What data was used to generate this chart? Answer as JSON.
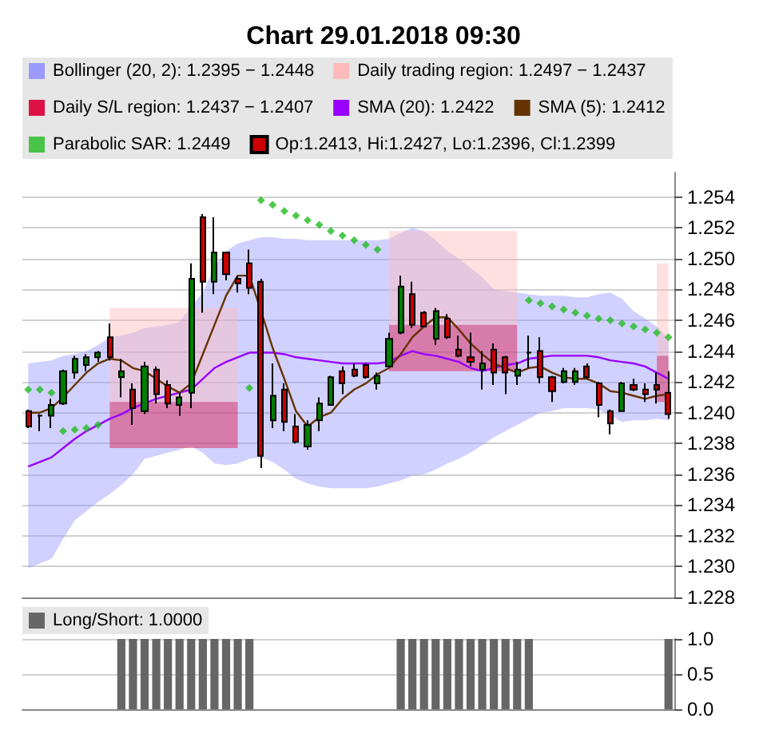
{
  "chart_data": [
    {
      "type": "candlestick",
      "title": "Chart 29.01.2018 09:30",
      "legend": "top left",
      "grid": "y",
      "tick_labels": "y",
      "ylim": [
        1.228,
        1.2556
      ],
      "yticks": [
        1.228,
        {
          "value": 1.23,
          "label": "1.230"
        },
        1.232,
        1.234,
        1.236,
        1.238,
        {
          "value": 1.24,
          "label": "1.240"
        },
        1.242,
        1.244,
        1.246,
        1.248,
        {
          "value": 1.25,
          "label": "1.250"
        },
        1.252,
        1.254
      ],
      "categories": [
        null,
        null,
        null,
        null,
        null,
        null,
        null,
        null,
        null,
        null,
        null,
        null,
        null,
        null,
        null,
        null,
        null,
        null,
        null,
        null,
        null,
        null,
        null,
        null,
        null,
        null,
        null,
        null,
        null,
        null,
        null,
        null,
        null,
        null,
        null,
        null,
        null,
        null,
        null,
        null,
        null,
        null,
        null,
        null,
        null,
        null,
        null,
        null,
        null,
        null,
        null,
        null,
        null,
        null,
        null,
        null
      ],
      "series": [
        {
          "name": "Bollinger (20, 2): 1.2395 − 1.2448",
          "type": "line",
          "color": "#9999ff",
          "values": [
            null,
            null,
            null,
            null,
            null,
            null,
            null,
            null,
            null,
            null,
            null,
            null,
            null,
            null,
            null,
            null,
            null,
            null,
            null,
            null,
            null,
            null,
            null,
            null,
            null,
            null,
            null,
            null,
            null,
            null,
            null,
            null,
            null,
            null,
            null,
            null,
            null,
            null,
            null,
            null,
            null,
            null,
            null,
            null,
            null,
            null,
            null,
            null,
            null,
            null,
            null,
            null,
            null,
            null,
            null,
            null
          ],
          "upper": [
            1.2432,
            1.2433,
            1.2434,
            1.2437,
            1.2438,
            1.244,
            1.2444,
            1.2449,
            1.245,
            1.2452,
            1.2455,
            1.2456,
            1.2457,
            1.2459,
            1.2469,
            1.2478,
            1.2495,
            1.2505,
            1.251,
            1.2512,
            1.2514,
            1.2514,
            1.2513,
            1.2513,
            1.2512,
            1.2512,
            1.2512,
            1.2512,
            1.2512,
            1.2512,
            1.2512,
            1.2513,
            1.2517,
            1.252,
            1.2518,
            1.2512,
            1.2505,
            1.25,
            1.2494,
            1.2488,
            1.248,
            1.2479,
            1.2478,
            1.2477,
            1.2476,
            1.2476,
            1.2476,
            1.2475,
            1.2475,
            1.2477,
            1.2478,
            1.2474,
            1.2466,
            1.2461,
            1.2456,
            1.2448
          ],
          "lower": [
            1.2299,
            1.2302,
            1.2305,
            1.2318,
            1.233,
            1.2336,
            1.2342,
            1.2347,
            1.2353,
            1.236,
            1.237,
            1.2372,
            1.2374,
            1.2376,
            1.2378,
            1.2374,
            1.2367,
            1.2366,
            1.2367,
            1.237,
            1.2371,
            1.2368,
            1.2363,
            1.2357,
            1.2354,
            1.2352,
            1.2351,
            1.2351,
            1.2351,
            1.2351,
            1.2352,
            1.2354,
            1.2356,
            1.2359,
            1.236,
            1.2363,
            1.2367,
            1.237,
            1.2374,
            1.2379,
            1.2384,
            1.2388,
            1.2392,
            1.2396,
            1.24,
            1.2401,
            1.2403,
            1.2403,
            1.2403,
            1.2402,
            1.2398,
            1.2394,
            1.2395,
            1.2395,
            1.2396,
            1.2395
          ]
        },
        {
          "name": "Daily trading region: 1.2497 − 1.2437",
          "type": "line",
          "color": "#ffbbbb",
          "values": [
            null,
            null,
            null,
            null,
            null,
            null,
            null,
            null,
            null,
            null,
            null,
            null,
            null,
            null,
            null,
            null,
            null,
            null,
            null,
            null,
            null,
            null,
            null,
            null,
            null,
            null,
            null,
            null,
            null,
            null,
            null,
            null,
            null,
            null,
            null,
            null,
            null,
            null,
            null,
            null,
            null,
            null,
            null,
            null,
            null,
            null,
            null,
            null,
            null,
            null,
            null,
            null,
            null,
            null,
            null,
            null
          ],
          "upper": [
            null,
            null,
            null,
            null,
            null,
            null,
            null,
            1.2468,
            1.2468,
            1.2468,
            1.2468,
            1.2468,
            1.2468,
            1.2468,
            1.2468,
            1.2468,
            1.2468,
            1.2468,
            1.2468,
            null,
            null,
            null,
            null,
            null,
            null,
            null,
            null,
            null,
            null,
            null,
            null,
            1.2518,
            1.2518,
            1.2518,
            1.2518,
            1.2518,
            1.2518,
            1.2518,
            1.2518,
            1.2518,
            1.2518,
            1.2518,
            1.2518,
            null,
            null,
            null,
            null,
            null,
            null,
            null,
            null,
            null,
            null,
            null,
            1.2497,
            1.2497
          ],
          "lower": [
            null,
            null,
            null,
            null,
            null,
            null,
            null,
            1.2407,
            1.2407,
            1.2407,
            1.2407,
            1.2407,
            1.2407,
            1.2407,
            1.2407,
            1.2407,
            1.2407,
            1.2407,
            1.2407,
            null,
            null,
            null,
            null,
            null,
            null,
            null,
            null,
            null,
            null,
            null,
            null,
            1.2457,
            1.2457,
            1.2457,
            1.2457,
            1.2457,
            1.2457,
            1.2457,
            1.2457,
            1.2457,
            1.2457,
            1.2457,
            1.2457,
            null,
            null,
            null,
            null,
            null,
            null,
            null,
            null,
            null,
            null,
            null,
            1.2437,
            1.2437
          ]
        },
        {
          "name": "Daily S/L region: 1.2437 − 1.2407",
          "type": "line",
          "color": "#dd1144",
          "values": [
            null,
            null,
            null,
            null,
            null,
            null,
            null,
            null,
            null,
            null,
            null,
            null,
            null,
            null,
            null,
            null,
            null,
            null,
            null,
            null,
            null,
            null,
            null,
            null,
            null,
            null,
            null,
            null,
            null,
            null,
            null,
            null,
            null,
            null,
            null,
            null,
            null,
            null,
            null,
            null,
            null,
            null,
            null,
            null,
            null,
            null,
            null,
            null,
            null,
            null,
            null,
            null,
            null,
            null,
            null,
            null
          ],
          "upper": [
            null,
            null,
            null,
            null,
            null,
            null,
            null,
            1.2407,
            1.2407,
            1.2407,
            1.2407,
            1.2407,
            1.2407,
            1.2407,
            1.2407,
            1.2407,
            1.2407,
            1.2407,
            1.2407,
            null,
            null,
            null,
            null,
            null,
            null,
            null,
            null,
            null,
            null,
            null,
            null,
            1.2457,
            1.2457,
            1.2457,
            1.2457,
            1.2457,
            1.2457,
            1.2457,
            1.2457,
            1.2457,
            1.2457,
            1.2457,
            1.2457,
            null,
            null,
            null,
            null,
            null,
            null,
            null,
            null,
            null,
            null,
            null,
            1.2437,
            1.2437
          ],
          "lower": [
            null,
            null,
            null,
            null,
            null,
            null,
            null,
            1.2377,
            1.2377,
            1.2377,
            1.2377,
            1.2377,
            1.2377,
            1.2377,
            1.2377,
            1.2377,
            1.2377,
            1.2377,
            1.2377,
            null,
            null,
            null,
            null,
            null,
            null,
            null,
            null,
            null,
            null,
            null,
            null,
            1.2427,
            1.2427,
            1.2427,
            1.2427,
            1.2427,
            1.2427,
            1.2427,
            1.2427,
            1.2427,
            1.2427,
            1.2427,
            1.2427,
            null,
            null,
            null,
            null,
            null,
            null,
            null,
            null,
            null,
            null,
            null,
            1.2407,
            1.2407
          ]
        },
        {
          "name": "SMA (20): 1.2422",
          "type": "line",
          "color": "#9900ff",
          "values": [
            1.2365,
            1.2368,
            1.2371,
            1.2377,
            1.2383,
            1.2388,
            1.2392,
            1.2396,
            1.2399,
            1.2403,
            1.2406,
            1.2409,
            1.2411,
            1.2413,
            1.2415,
            1.2422,
            1.2429,
            1.2433,
            1.2436,
            1.2439,
            1.2439,
            1.2439,
            1.2438,
            1.2436,
            1.2435,
            1.2434,
            1.2433,
            1.2432,
            1.2432,
            1.2432,
            1.2432,
            1.2433,
            1.2437,
            1.244,
            1.2438,
            1.2437,
            1.2435,
            1.2433,
            1.2429,
            1.2427,
            1.2429,
            1.2431,
            1.2432,
            1.2435,
            1.2436,
            1.2437,
            1.2437,
            1.2437,
            1.2437,
            1.2436,
            1.2434,
            1.2433,
            1.2432,
            1.243,
            1.2426,
            1.2422
          ]
        },
        {
          "name": "SMA (5): 1.2412",
          "type": "line",
          "color": "#663300",
          "values": [
            1.24,
            1.24,
            1.2403,
            1.241,
            1.2418,
            1.2426,
            1.2432,
            1.2435,
            1.2434,
            1.2429,
            1.2427,
            1.2422,
            1.2417,
            1.2413,
            1.2419,
            1.2438,
            1.2457,
            1.2476,
            1.2489,
            1.2489,
            1.2466,
            1.2442,
            1.2422,
            1.2401,
            1.2391,
            1.2397,
            1.24,
            1.2409,
            1.2415,
            1.2419,
            1.2425,
            1.2429,
            1.2438,
            1.2449,
            1.2456,
            1.2462,
            1.2462,
            1.2454,
            1.2445,
            1.2438,
            1.2432,
            1.2429,
            1.2426,
            1.2429,
            1.243,
            1.2426,
            1.2423,
            1.2422,
            1.2422,
            1.2419,
            1.2414,
            1.2413,
            1.2411,
            1.2409,
            1.2411,
            1.2412
          ]
        },
        {
          "name": "Parabolic SAR: 1.2449",
          "type": "scatter",
          "marker": "diamond",
          "color": "#22bb22",
          "values": [
            1.2415,
            1.2415,
            1.2413,
            1.2388,
            1.2389,
            1.239,
            1.2392,
            null,
            null,
            null,
            null,
            null,
            null,
            null,
            null,
            null,
            null,
            null,
            null,
            1.2416,
            1.2538,
            1.2535,
            1.2531,
            1.2528,
            1.2525,
            1.2522,
            1.2518,
            1.2515,
            1.2512,
            1.2509,
            1.2506,
            null,
            null,
            null,
            null,
            null,
            null,
            null,
            null,
            null,
            null,
            null,
            null,
            1.2473,
            1.2471,
            1.2469,
            1.2467,
            1.2465,
            1.2463,
            1.2461,
            1.246,
            1.2458,
            1.2456,
            1.2454,
            1.2452,
            1.2449
          ]
        },
        {
          "name": "Op:1.2413, Hi:1.2427, Lo:1.2396, Cl:1.2399",
          "type": "candlestick",
          "color": "#cc0000",
          "colors": [
            "#cc0000",
            "#000000",
            "#008000",
            "#008000",
            "#008000",
            "#008000",
            "#008000",
            "#cc0000",
            "#008000",
            "#cc0000",
            "#008000",
            "#cc0000",
            "#cc0000",
            "#008000",
            "#008000",
            "#cc0000",
            "#008000",
            "#cc0000",
            "#cc0000",
            "#cc0000",
            "#cc0000",
            "#008000",
            "#cc0000",
            "#cc0000",
            "#008000",
            "#008000",
            "#008000",
            "#cc0000",
            "#cc0000",
            "#cc0000",
            "#008000",
            "#008000",
            "#008000",
            "#cc0000",
            "#cc0000",
            "#008000",
            "#cc0000",
            "#cc0000",
            "#cc0000",
            "#008000",
            "#cc0000",
            "#cc0000",
            "#008000",
            "#000000",
            "#cc0000",
            "#cc0000",
            "#008000",
            "#008000",
            "#cc0000",
            "#cc0000",
            "#cc0000",
            "#008000",
            "#cc0000",
            "#cc0000",
            "#cc0000",
            "#cc0000"
          ],
          "ohlc": [
            [
              1.2401,
              1.2402,
              1.239,
              1.2391
            ],
            [
              1.2398,
              1.2399,
              1.2388,
              1.2398
            ],
            [
              1.2398,
              1.2409,
              1.239,
              1.2405
            ],
            [
              1.2406,
              1.2428,
              1.2405,
              1.2427
            ],
            [
              1.2426,
              1.2437,
              1.2422,
              1.2435
            ],
            [
              1.2431,
              1.2438,
              1.2427,
              1.2436
            ],
            [
              1.2436,
              1.244,
              1.2433,
              1.2439
            ],
            [
              1.2449,
              1.2458,
              1.2434,
              1.2436
            ],
            [
              1.2423,
              1.2435,
              1.241,
              1.2427
            ],
            [
              1.2415,
              1.2419,
              1.2392,
              1.2403
            ],
            [
              1.2401,
              1.2433,
              1.2399,
              1.243
            ],
            [
              1.2428,
              1.243,
              1.2406,
              1.2412
            ],
            [
              1.2418,
              1.2421,
              1.2403,
              1.2406
            ],
            [
              1.2405,
              1.2413,
              1.2398,
              1.241
            ],
            [
              1.2413,
              1.2497,
              1.2403,
              1.2487
            ],
            [
              1.2527,
              1.2529,
              1.2465,
              1.2485
            ],
            [
              1.2485,
              1.2527,
              1.2477,
              1.2504
            ],
            [
              1.2504,
              1.2504,
              1.2486,
              1.249
            ],
            [
              1.2487,
              1.2489,
              1.2478,
              1.2484
            ],
            [
              1.2497,
              1.2506,
              1.2477,
              1.2481
            ],
            [
              1.2485,
              1.2487,
              1.2364,
              1.2372
            ],
            [
              1.2395,
              1.2432,
              1.239,
              1.2411
            ],
            [
              1.2415,
              1.2419,
              1.2388,
              1.2394
            ],
            [
              1.2391,
              1.2399,
              1.238,
              1.2381
            ],
            [
              1.2378,
              1.2395,
              1.2376,
              1.2392
            ],
            [
              1.2395,
              1.241,
              1.2388,
              1.2406
            ],
            [
              1.2405,
              1.2424,
              1.2405,
              1.2423
            ],
            [
              1.2427,
              1.243,
              1.2412,
              1.2419
            ],
            [
              1.2428,
              1.2432,
              1.2423,
              1.2424
            ],
            [
              1.2431,
              1.2432,
              1.2422,
              1.2423
            ],
            [
              1.2419,
              1.2426,
              1.2415,
              1.2424
            ],
            [
              1.243,
              1.2452,
              1.243,
              1.2448
            ],
            [
              1.2452,
              1.2489,
              1.2451,
              1.2482
            ],
            [
              1.2477,
              1.2485,
              1.2455,
              1.2457
            ],
            [
              1.2465,
              1.2466,
              1.2456,
              1.2456
            ],
            [
              1.2448,
              1.2468,
              1.2444,
              1.2466
            ],
            [
              1.2461,
              1.2464,
              1.2448,
              1.2449
            ],
            [
              1.2441,
              1.245,
              1.2436,
              1.2437
            ],
            [
              1.2436,
              1.2452,
              1.243,
              1.2433
            ],
            [
              1.2428,
              1.244,
              1.2415,
              1.2432
            ],
            [
              1.2441,
              1.2445,
              1.2418,
              1.2426
            ],
            [
              1.2436,
              1.2437,
              1.2412,
              1.2426
            ],
            [
              1.2424,
              1.2433,
              1.2418,
              1.2428
            ],
            [
              1.2439,
              1.245,
              1.2429,
              1.2439
            ],
            [
              1.244,
              1.2449,
              1.2419,
              1.2423
            ],
            [
              1.2423,
              1.2424,
              1.2407,
              1.2414
            ],
            [
              1.242,
              1.2429,
              1.2419,
              1.2427
            ],
            [
              1.242,
              1.2429,
              1.2418,
              1.2427
            ],
            [
              1.243,
              1.2432,
              1.2422,
              1.2423
            ],
            [
              1.2419,
              1.242,
              1.2397,
              1.2405
            ],
            [
              1.2401,
              1.2402,
              1.2386,
              1.2393
            ],
            [
              1.2401,
              1.242,
              1.2401,
              1.2419
            ],
            [
              1.2418,
              1.2422,
              1.2414,
              1.2415
            ],
            [
              1.2415,
              1.2419,
              1.2407,
              1.2412
            ],
            [
              1.2418,
              1.2426,
              1.2406,
              1.2415
            ],
            [
              1.2413,
              1.2427,
              1.2396,
              1.2399
            ]
          ]
        }
      ]
    },
    {
      "type": "bar",
      "legend": "top left",
      "grid": "y",
      "tick_labels": "y",
      "ylim": [
        0,
        1
      ],
      "yticks": [
        {
          "value": 0,
          "label": "0.0"
        },
        {
          "value": 0.5,
          "label": "0.5"
        },
        {
          "value": 1,
          "label": "1.0"
        }
      ],
      "categories": [
        null,
        null,
        null,
        null,
        null,
        null,
        null,
        null,
        null,
        null,
        null,
        null,
        null,
        null,
        null,
        null,
        null,
        null,
        null,
        null,
        null,
        null,
        null,
        null,
        null,
        null,
        null,
        null,
        null,
        null,
        null,
        null,
        null,
        null,
        null,
        null,
        null,
        null,
        null,
        null,
        null,
        null,
        null,
        null,
        null,
        null,
        null,
        null,
        null,
        null,
        null,
        null,
        null,
        null,
        null,
        null
      ],
      "series": [
        {
          "name": "Long/Short: 1.0000",
          "color": "#666666",
          "values": [
            0,
            0,
            0,
            0,
            0,
            0,
            0,
            0,
            1,
            1,
            1,
            1,
            1,
            1,
            1,
            1,
            1,
            1,
            1,
            1,
            0,
            0,
            0,
            0,
            0,
            0,
            0,
            0,
            0,
            0,
            0,
            0,
            1,
            1,
            1,
            1,
            1,
            1,
            1,
            1,
            1,
            1,
            1,
            1,
            0,
            0,
            0,
            0,
            0,
            0,
            0,
            0,
            0,
            0,
            0,
            1
          ]
        }
      ]
    }
  ]
}
